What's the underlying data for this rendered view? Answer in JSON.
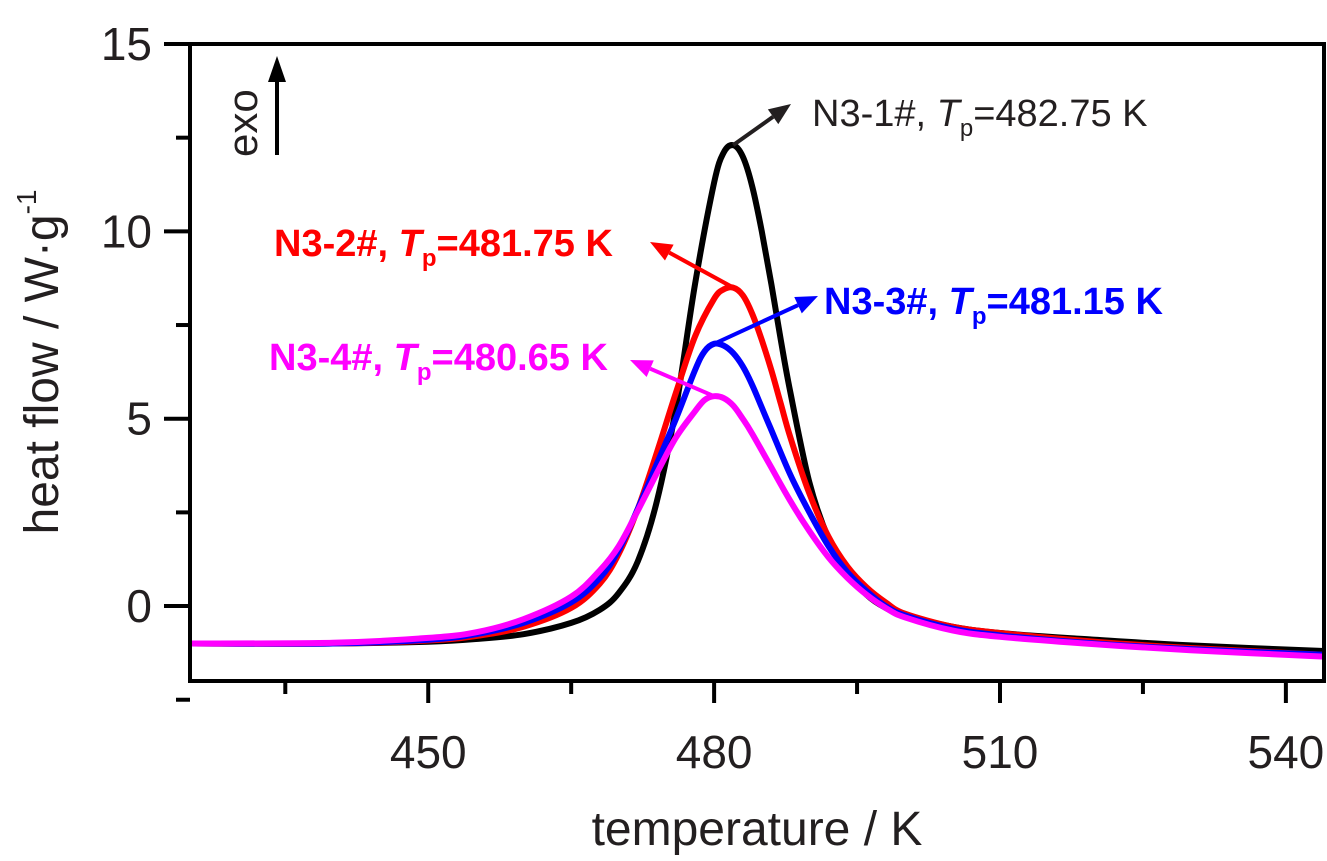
{
  "chart_data": {
    "type": "line",
    "xlabel": "temperature / K",
    "ylabel_main": "heat flow / W·g",
    "ylabel_sup": "-1",
    "xlim": [
      425,
      544
    ],
    "ylim": [
      -2,
      15
    ],
    "xticks": [
      450,
      480,
      510,
      540
    ],
    "xtick_labels": [
      "450",
      "480",
      "510",
      "540"
    ],
    "xminor_ticks": [
      435,
      465,
      495,
      525
    ],
    "yticks": [
      0,
      5,
      10,
      15
    ],
    "ytick_labels": [
      "0",
      "5",
      "10",
      "15"
    ],
    "yminor_ticks": [
      -2.5,
      2.5,
      7.5,
      12.5
    ],
    "grid": false,
    "exo_label": "exo",
    "series": [
      {
        "color": "#000000",
        "x": [
          425,
          440,
          450,
          455,
          460,
          465,
          468,
          470,
          472,
          474,
          476,
          478,
          480,
          481,
          482,
          483,
          484,
          485,
          486,
          487,
          488,
          490,
          492,
          494,
          496,
          498,
          500,
          505,
          510,
          520,
          530,
          544
        ],
        "y": [
          -1.0,
          -1.0,
          -0.95,
          -0.88,
          -0.75,
          -0.45,
          -0.1,
          0.35,
          1.2,
          2.8,
          5.3,
          8.6,
          11.3,
          12.1,
          12.3,
          12.0,
          11.2,
          10.0,
          8.6,
          7.1,
          5.7,
          3.3,
          1.8,
          0.9,
          0.3,
          -0.05,
          -0.25,
          -0.55,
          -0.72,
          -0.9,
          -1.05,
          -1.2
        ]
      },
      {
        "color": "#ff0000",
        "x": [
          425,
          440,
          450,
          455,
          460,
          465,
          468,
          470,
          472,
          474,
          476,
          478,
          480,
          481,
          482,
          483,
          484,
          485,
          486,
          487,
          488,
          490,
          492,
          494,
          496,
          498,
          500,
          505,
          510,
          520,
          530,
          544
        ],
        "y": [
          -1.0,
          -1.0,
          -0.92,
          -0.8,
          -0.55,
          -0.05,
          0.6,
          1.4,
          2.6,
          4.1,
          5.7,
          7.2,
          8.2,
          8.45,
          8.5,
          8.3,
          7.8,
          7.1,
          6.3,
          5.4,
          4.5,
          3.0,
          1.85,
          1.05,
          0.5,
          0.1,
          -0.2,
          -0.55,
          -0.72,
          -0.95,
          -1.12,
          -1.3
        ]
      },
      {
        "color": "#0000ff",
        "x": [
          425,
          440,
          450,
          455,
          460,
          465,
          468,
          470,
          472,
          474,
          476,
          478,
          479,
          480,
          481,
          482,
          483,
          484,
          485,
          486,
          488,
          490,
          492,
          494,
          496,
          498,
          500,
          505,
          510,
          520,
          530,
          544
        ],
        "y": [
          -1.0,
          -1.0,
          -0.9,
          -0.75,
          -0.45,
          0.1,
          0.75,
          1.5,
          2.6,
          3.8,
          5.0,
          6.3,
          6.8,
          7.0,
          6.95,
          6.75,
          6.4,
          5.9,
          5.3,
          4.7,
          3.5,
          2.5,
          1.6,
          0.9,
          0.4,
          0.0,
          -0.25,
          -0.6,
          -0.78,
          -1.0,
          -1.15,
          -1.3
        ]
      },
      {
        "color": "#ff00ff",
        "x": [
          425,
          440,
          450,
          455,
          460,
          465,
          468,
          470,
          472,
          474,
          476,
          478,
          479,
          480,
          481,
          482,
          483,
          484,
          486,
          488,
          490,
          492,
          494,
          496,
          498,
          500,
          505,
          510,
          520,
          530,
          544
        ],
        "y": [
          -1.0,
          -0.98,
          -0.85,
          -0.7,
          -0.35,
          0.25,
          0.95,
          1.6,
          2.55,
          3.55,
          4.5,
          5.2,
          5.5,
          5.6,
          5.55,
          5.35,
          5.0,
          4.6,
          3.7,
          2.8,
          2.0,
          1.3,
          0.75,
          0.3,
          -0.05,
          -0.3,
          -0.65,
          -0.82,
          -1.02,
          -1.18,
          -1.35
        ]
      }
    ],
    "annotations": [
      {
        "prefix": "N3-1#, ",
        "italic": "T",
        "sub": "p",
        "suffix": "=482.75 K",
        "color": "#231f20",
        "bold": false,
        "peak": [
          482,
          12.3
        ]
      },
      {
        "prefix": "N3-2#, ",
        "italic": "T",
        "sub": "p",
        "suffix": "=481.75 K",
        "color": "#ff0000",
        "bold": true,
        "peak": [
          482,
          8.5
        ]
      },
      {
        "prefix": "N3-3#, ",
        "italic": "T",
        "sub": "p",
        "suffix": "=481.15 K",
        "color": "#0000ff",
        "bold": true,
        "peak": [
          480,
          7.0
        ]
      },
      {
        "prefix": "N3-4#, ",
        "italic": "T",
        "sub": "p",
        "suffix": "=480.65 K",
        "color": "#ff00ff",
        "bold": true,
        "peak": [
          480,
          5.6
        ]
      }
    ]
  }
}
